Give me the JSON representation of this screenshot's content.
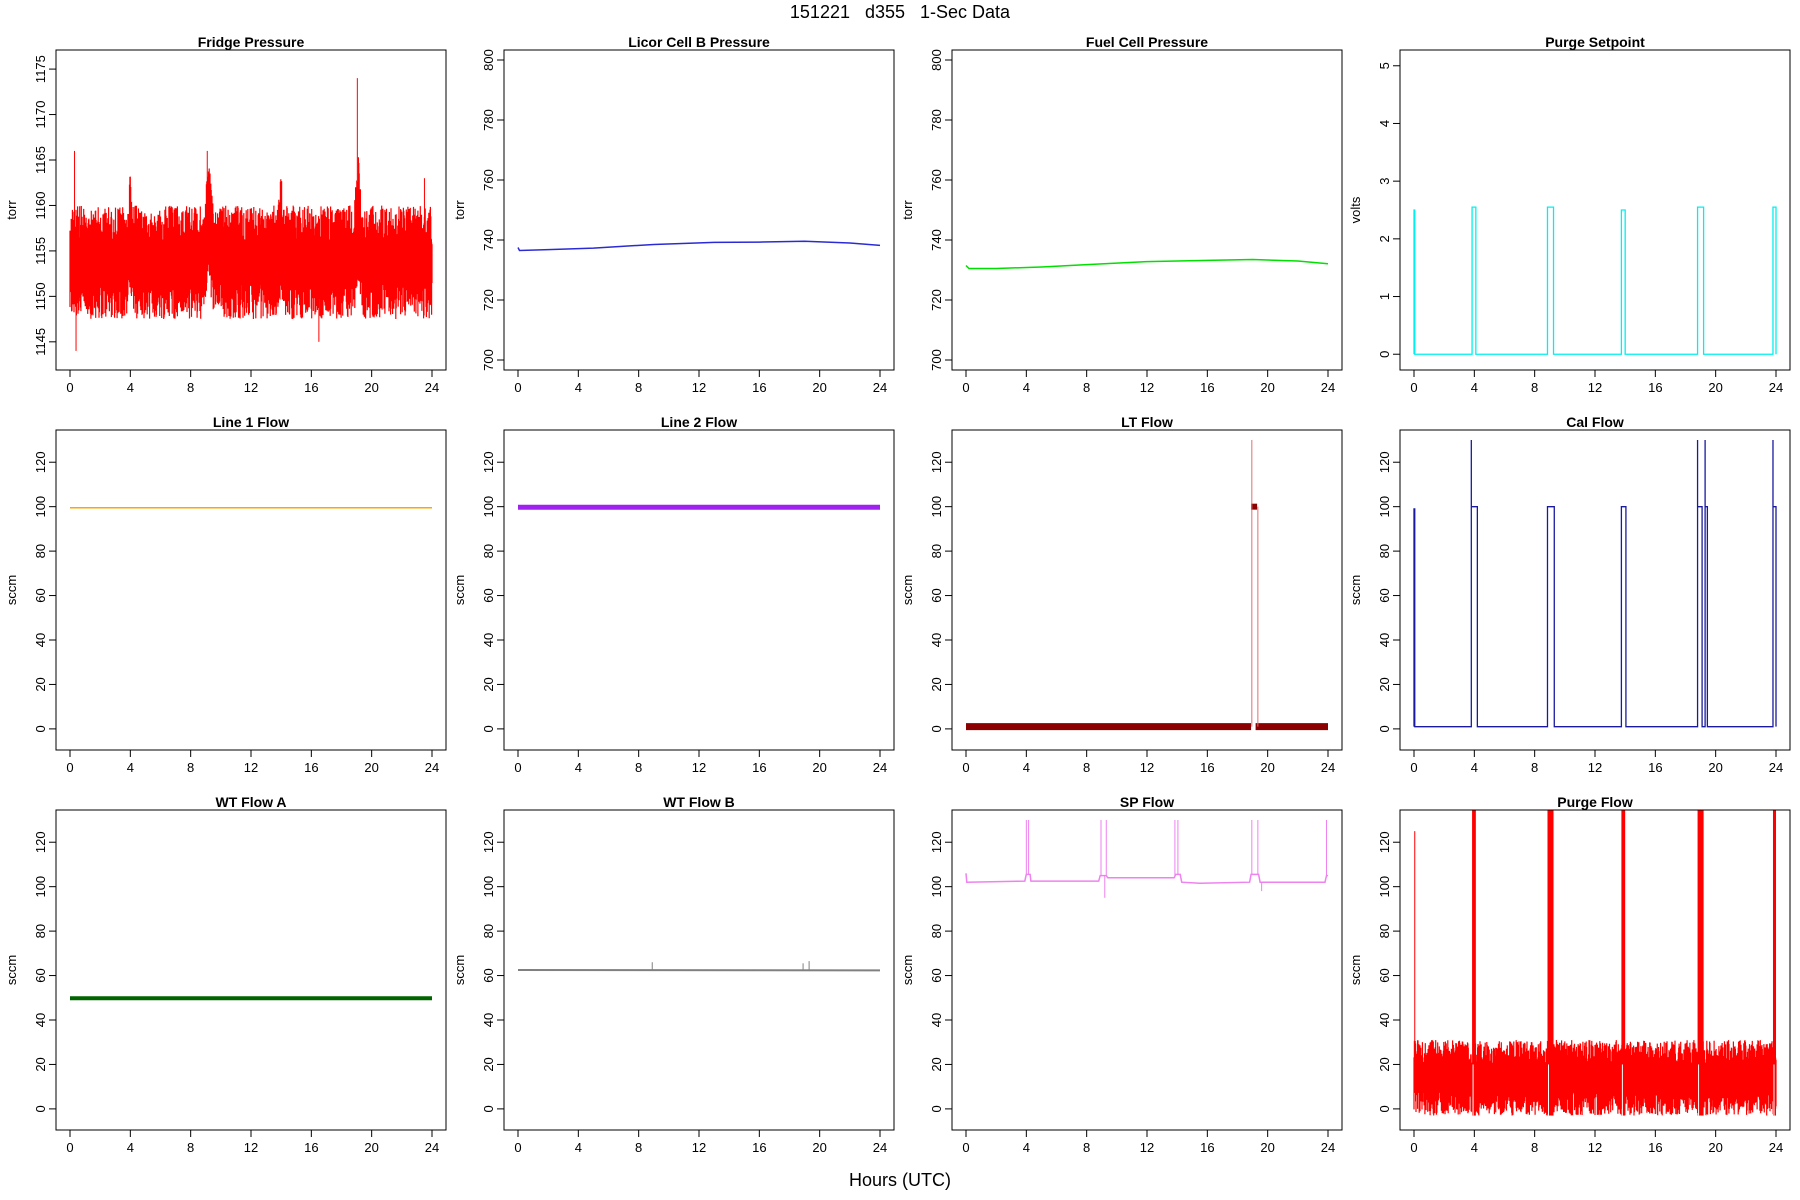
{
  "figure": {
    "title": "151221   d355   1-Sec Data",
    "xlabel": "Hours (UTC)"
  },
  "chart_data": [
    {
      "type": "line",
      "title": "Fridge Pressure",
      "ylabel": "torr",
      "color": "#ff0000",
      "xlim": [
        0,
        24
      ],
      "xticks": [
        0,
        4,
        8,
        12,
        16,
        20,
        24
      ],
      "ylim": [
        1143,
        1176
      ],
      "yticks": [
        1145,
        1150,
        1155,
        1160,
        1165,
        1170,
        1175
      ],
      "noisy_band": {
        "x": [
          0,
          3.8,
          4.0,
          4.2,
          8.9,
          9.2,
          9.5,
          13.8,
          14.0,
          14.2,
          18.8,
          19.1,
          19.4,
          24
        ],
        "low": [
          1147.5,
          1147.5,
          1150,
          1147.5,
          1147.5,
          1152,
          1147.5,
          1147.5,
          1151,
          1147.5,
          1147.5,
          1152,
          1147.5,
          1147.5
        ],
        "high": [
          1160,
          1160,
          1164,
          1160,
          1160,
          1165,
          1160,
          1160,
          1164,
          1160,
          1160,
          1166,
          1160,
          1160
        ]
      },
      "spikes": [
        [
          0.3,
          1166
        ],
        [
          0.4,
          1144
        ],
        [
          9.1,
          1166
        ],
        [
          19.05,
          1174
        ],
        [
          16.5,
          1145
        ],
        [
          23.5,
          1163
        ]
      ]
    },
    {
      "type": "line",
      "title": "Licor Cell B Pressure",
      "ylabel": "torr",
      "color": "#2b2bd6",
      "xlim": [
        0,
        24
      ],
      "xticks": [
        0,
        4,
        8,
        12,
        16,
        20,
        24
      ],
      "ylim": [
        700,
        800
      ],
      "yticks": [
        700,
        720,
        740,
        760,
        780,
        800
      ],
      "series": {
        "x": [
          0,
          0.1,
          2,
          5,
          9,
          13,
          16,
          19,
          22,
          24
        ],
        "y": [
          737.5,
          736.5,
          736.8,
          737.3,
          738.5,
          739.2,
          739.3,
          739.6,
          739,
          738.2
        ]
      }
    },
    {
      "type": "line",
      "title": "Fuel Cell Pressure",
      "ylabel": "torr",
      "color": "#00e000",
      "xlim": [
        0,
        24
      ],
      "xticks": [
        0,
        4,
        8,
        12,
        16,
        20,
        24
      ],
      "ylim": [
        700,
        800
      ],
      "yticks": [
        700,
        720,
        740,
        760,
        780,
        800
      ],
      "series": {
        "x": [
          0,
          0.2,
          2,
          5,
          8,
          12,
          16,
          19,
          22,
          24
        ],
        "y": [
          731.5,
          730.5,
          730.5,
          731,
          731.8,
          732.8,
          733.2,
          733.5,
          733,
          732.1
        ]
      }
    },
    {
      "type": "line",
      "title": "Purge Setpoint",
      "ylabel": "volts",
      "color": "#00f0f0",
      "xlim": [
        0,
        24
      ],
      "xticks": [
        0,
        4,
        8,
        12,
        16,
        20,
        24
      ],
      "ylim": [
        -0.1,
        5.1
      ],
      "yticks": [
        0,
        1,
        2,
        3,
        4,
        5
      ],
      "baseline": 0,
      "pulses": [
        {
          "start": 0.0,
          "end": 0.05,
          "level": 2.5
        },
        {
          "start": 3.85,
          "end": 4.1,
          "level": 2.55
        },
        {
          "start": 8.85,
          "end": 9.25,
          "level": 2.55
        },
        {
          "start": 13.75,
          "end": 14.0,
          "level": 2.5
        },
        {
          "start": 18.8,
          "end": 19.2,
          "level": 2.55
        },
        {
          "start": 23.8,
          "end": 24.0,
          "level": 2.55
        }
      ]
    },
    {
      "type": "line",
      "title": "Line 1 Flow",
      "ylabel": "sccm",
      "color": "#ffa500",
      "xlim": [
        0,
        24
      ],
      "xticks": [
        0,
        4,
        8,
        12,
        16,
        20,
        24
      ],
      "ylim": [
        -5,
        130
      ],
      "yticks": [
        0,
        20,
        40,
        60,
        80,
        100,
        120
      ],
      "series": {
        "x": [
          0,
          24
        ],
        "y": [
          99.5,
          99.5
        ]
      },
      "line_width": 1.5
    },
    {
      "type": "line",
      "title": "Line 2 Flow",
      "ylabel": "sccm",
      "color": "#a020f0",
      "xlim": [
        0,
        24
      ],
      "xticks": [
        0,
        4,
        8,
        12,
        16,
        20,
        24
      ],
      "ylim": [
        -5,
        130
      ],
      "yticks": [
        0,
        20,
        40,
        60,
        80,
        100,
        120
      ],
      "series": {
        "x": [
          0,
          24
        ],
        "y": [
          99.7,
          99.7
        ]
      },
      "line_width": 5
    },
    {
      "type": "line",
      "title": "LT Flow",
      "ylabel": "sccm",
      "color": "#8b0000",
      "xlim": [
        0,
        24
      ],
      "xticks": [
        0,
        4,
        8,
        12,
        16,
        20,
        24
      ],
      "ylim": [
        -5,
        130
      ],
      "yticks": [
        0,
        20,
        40,
        60,
        80,
        100,
        120
      ],
      "segments": [
        {
          "x": [
            0,
            18.9
          ],
          "y": [
            1,
            1
          ],
          "width": 7
        },
        {
          "x": [
            19.2,
            24
          ],
          "y": [
            1,
            1
          ],
          "width": 7
        },
        {
          "x": [
            18.9,
            19.3
          ],
          "y": [
            100,
            100
          ],
          "width": 6
        }
      ],
      "spikes": [
        [
          18.95,
          130
        ],
        [
          19.35,
          100
        ]
      ],
      "spike_color": "#e07070"
    },
    {
      "type": "line",
      "title": "Cal Flow",
      "ylabel": "sccm",
      "color": "#1a1aa0",
      "xlim": [
        0,
        24
      ],
      "xticks": [
        0,
        4,
        8,
        12,
        16,
        20,
        24
      ],
      "ylim": [
        -5,
        130
      ],
      "yticks": [
        0,
        20,
        40,
        60,
        80,
        100,
        120
      ],
      "baseline": 1,
      "pulses": [
        {
          "start": 0.0,
          "end": 0.05,
          "level": 99
        },
        {
          "start": 3.8,
          "end": 4.2,
          "level": 100,
          "spike": 130
        },
        {
          "start": 8.85,
          "end": 9.3,
          "level": 100
        },
        {
          "start": 13.75,
          "end": 14.05,
          "level": 100
        },
        {
          "start": 18.8,
          "end": 19.1,
          "level": 100,
          "spike": 130
        },
        {
          "start": 19.3,
          "end": 19.45,
          "level": 100,
          "spike": 130
        },
        {
          "start": 23.8,
          "end": 24.0,
          "level": 100,
          "spike": 130
        }
      ]
    },
    {
      "type": "line",
      "title": "WT Flow A",
      "ylabel": "sccm",
      "color": "#006400",
      "xlim": [
        0,
        24
      ],
      "xticks": [
        0,
        4,
        8,
        12,
        16,
        20,
        24
      ],
      "ylim": [
        -5,
        130
      ],
      "yticks": [
        0,
        20,
        40,
        60,
        80,
        100,
        120
      ],
      "series": {
        "x": [
          0,
          24
        ],
        "y": [
          49.8,
          49.8
        ]
      },
      "line_width": 4
    },
    {
      "type": "line",
      "title": "WT Flow B",
      "ylabel": "sccm",
      "color": "#808080",
      "xlim": [
        0,
        24
      ],
      "xticks": [
        0,
        4,
        8,
        12,
        16,
        20,
        24
      ],
      "ylim": [
        -5,
        130
      ],
      "yticks": [
        0,
        20,
        40,
        60,
        80,
        100,
        120
      ],
      "series": {
        "x": [
          0,
          24
        ],
        "y": [
          62.5,
          62.3
        ]
      },
      "line_width": 2,
      "spikes": [
        [
          8.9,
          66
        ],
        [
          18.9,
          65.5
        ],
        [
          19.3,
          66.5
        ]
      ]
    },
    {
      "type": "line",
      "title": "SP Flow",
      "ylabel": "sccm",
      "color": "#ee82ee",
      "xlim": [
        0,
        24
      ],
      "xticks": [
        0,
        4,
        8,
        12,
        16,
        20,
        24
      ],
      "ylim": [
        -5,
        130
      ],
      "yticks": [
        0,
        20,
        40,
        60,
        80,
        100,
        120
      ],
      "series": {
        "x": [
          0,
          0.05,
          3.9,
          4.0,
          4.25,
          4.3,
          8.8,
          8.9,
          9.3,
          9.4,
          13.8,
          13.9,
          14.2,
          14.3,
          15.5,
          18.8,
          18.9,
          19.4,
          19.5,
          23.8,
          23.9,
          24
        ],
        "y": [
          106,
          102,
          102.5,
          105.5,
          105.5,
          102.5,
          102.5,
          105,
          105,
          104,
          104,
          105.5,
          105.5,
          102,
          101.5,
          102,
          105.5,
          105.5,
          102,
          102,
          105,
          105
        ]
      },
      "spikes": [
        [
          4.0,
          130
        ],
        [
          4.15,
          130
        ],
        [
          8.95,
          130
        ],
        [
          9.3,
          130
        ],
        [
          9.2,
          95
        ],
        [
          13.85,
          130
        ],
        [
          14.05,
          130
        ],
        [
          18.95,
          130
        ],
        [
          19.35,
          130
        ],
        [
          19.6,
          98
        ],
        [
          23.9,
          130
        ]
      ]
    },
    {
      "type": "line",
      "title": "Purge Flow",
      "ylabel": "sccm",
      "color": "#ff0000",
      "xlim": [
        0,
        24
      ],
      "xticks": [
        0,
        4,
        8,
        12,
        16,
        20,
        24
      ],
      "ylim": [
        -5,
        130
      ],
      "yticks": [
        0,
        20,
        40,
        60,
        80,
        100,
        120
      ],
      "noisy_band": {
        "x": [
          0,
          24
        ],
        "low": [
          -3,
          -3
        ],
        "high": [
          31,
          31
        ]
      },
      "bursts": [
        {
          "start": 3.85,
          "end": 4.1
        },
        {
          "start": 8.85,
          "end": 9.25
        },
        {
          "start": 13.75,
          "end": 14.0
        },
        {
          "start": 18.8,
          "end": 19.2
        },
        {
          "start": 23.8,
          "end": 24.0
        }
      ],
      "spikes": [
        [
          0.05,
          125
        ]
      ]
    }
  ]
}
